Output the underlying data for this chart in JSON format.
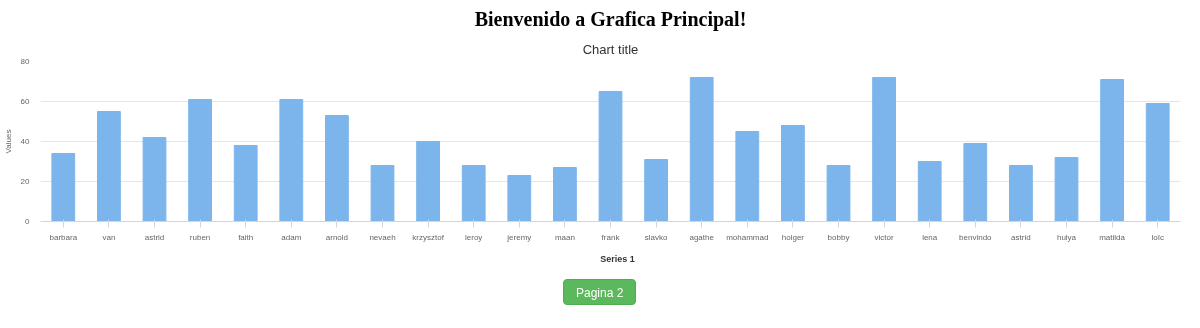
{
  "chart_data": {
    "type": "bar",
    "title": "Bienvenido a Grafica Principal!",
    "subtitle": "Chart title",
    "ylabel": "Values",
    "categories": [
      "barbara",
      "van",
      "astrid",
      "ruben",
      "faith",
      "adam",
      "arnold",
      "nevaeh",
      "krzysztof",
      "leroy",
      "jeremy",
      "maan",
      "frank",
      "slavko",
      "agathe",
      "mohammad",
      "holger",
      "bobby",
      "victor",
      "lena",
      "benvindo",
      "astrid",
      "hulya",
      "matilda",
      "loïc"
    ],
    "series": [
      {
        "name": "Series 1",
        "color": "#7cb5ec",
        "values": [
          34,
          55,
          42,
          61,
          38,
          61,
          53,
          28,
          40,
          28,
          23,
          27,
          65,
          31,
          72,
          45,
          48,
          28,
          72,
          30,
          39,
          28,
          32,
          71,
          59
        ]
      }
    ],
    "ylim": [
      0,
      80
    ],
    "yticks": [
      0,
      20,
      40,
      60,
      80
    ],
    "grid": "y",
    "legend": "bottom",
    "annotations": [
      "Pagina 2"
    ]
  }
}
